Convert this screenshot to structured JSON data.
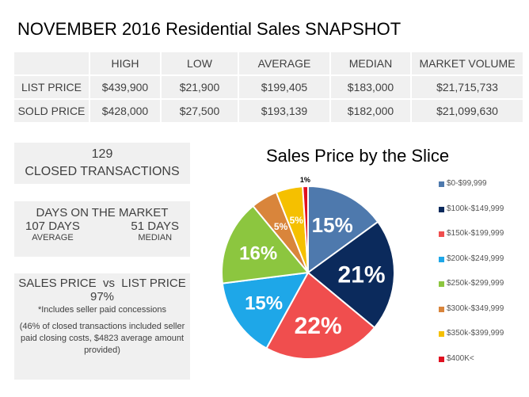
{
  "title": "NOVEMBER 2016 Residential Sales SNAPSHOT",
  "table": {
    "headers": [
      "",
      "HIGH",
      "LOW",
      "AVERAGE",
      "MEDIAN",
      "MARKET VOLUME"
    ],
    "rows": [
      [
        "LIST PRICE",
        "$439,900",
        "$21,900",
        "$199,405",
        "$183,000",
        "$21,715,733"
      ],
      [
        "SOLD PRICE",
        "$428,000",
        "$27,500",
        "$193,139",
        "$182,000",
        "$21,099,630"
      ]
    ]
  },
  "closed": {
    "count": "129",
    "label": "CLOSED TRANSACTIONS"
  },
  "dom": {
    "title": "DAYS ON THE MARKET",
    "avg_value": "107 DAYS",
    "avg_label": "AVERAGE",
    "median_value": "51 DAYS",
    "median_label": "MEDIAN"
  },
  "spvlp": {
    "title": "SALES PRICE  vs  LIST PRICE",
    "value": "97%",
    "note": "*Includes seller paid concessions",
    "detail": "(46% of closed transactions included seller paid closing costs, $4823 average amount provided)"
  },
  "chart_data": {
    "type": "pie",
    "title": "Sales Price by the Slice",
    "categories": [
      "$0-$99,999",
      "$100k-$149,999",
      "$150k-$199,999",
      "$200k-$249,999",
      "$250k-$299,999",
      "$300k-$349,999",
      "$350k-$399,999",
      "$400K<"
    ],
    "values": [
      15,
      21,
      22,
      15,
      16,
      5,
      5,
      1
    ],
    "labels": [
      "15%",
      "21%",
      "22%",
      "15%",
      "16%",
      "5%",
      "5%",
      "1%"
    ],
    "colors": [
      "#4e79ad",
      "#0b2a5c",
      "#f04e4e",
      "#1ea7e8",
      "#8cc63f",
      "#d9853b",
      "#f5c000",
      "#e01020"
    ],
    "legend_position": "right"
  }
}
